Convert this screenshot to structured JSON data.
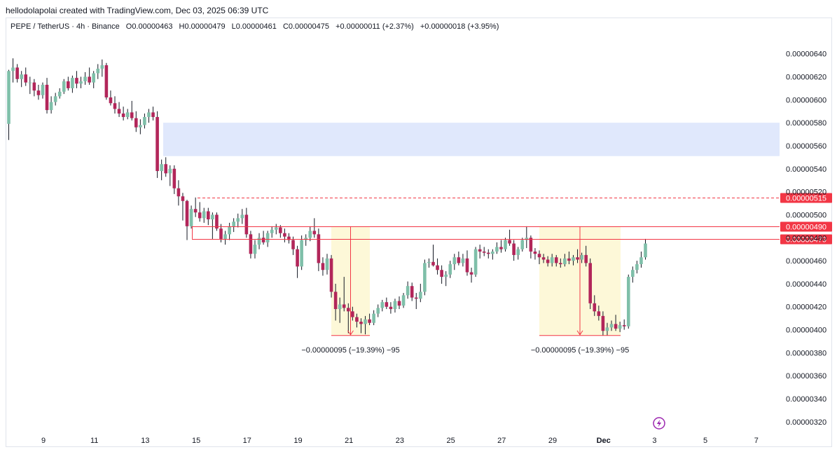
{
  "header": {
    "title": "hellodolapolai created with TradingView.com, Dec 03, 2025 06:39 UTC"
  },
  "legend": {
    "symbol": "PEPE / TetherUS · 4h · Binance",
    "open": "O0.00000463",
    "high": "H0.00000479",
    "low": "L0.00000461",
    "close": "C0.00000475",
    "change": "+0.00000011 (+2.37%)",
    "change2": "+0.00000018 (+3.95%)"
  },
  "colors": {
    "up": "#7fbfa9",
    "down": "#b2265a",
    "zone": "#e0e8fc",
    "box": "#fdf8d8",
    "level": "#f23645"
  },
  "chart_data": {
    "type": "candlestick",
    "x_tick_labels": [
      "9",
      "11",
      "13",
      "15",
      "17",
      "19",
      "21",
      "23",
      "25",
      "27",
      "29",
      "Dec",
      "3",
      "5",
      "7"
    ],
    "y_tick_labels": [
      "0.00000640",
      "0.00000620",
      "0.00000600",
      "0.00000580",
      "0.00000560",
      "0.00000540",
      "0.00000520",
      "0.00000500",
      "0.00000480",
      "0.00000460",
      "0.00000440",
      "0.00000420",
      "0.00000400",
      "0.00000380",
      "0.00000360",
      "0.00000340",
      "0.00000320"
    ],
    "ylim": [
      3.12e-06,
      6.66e-06
    ],
    "price_levels": [
      {
        "label": "0.00000515",
        "value": 5.15e-06,
        "style": "dashed"
      },
      {
        "label": "0.00000490",
        "value": 4.9e-06,
        "style": "solid"
      },
      {
        "label": "0.00000479",
        "value": 4.79e-06,
        "style": "solid"
      }
    ],
    "zone": {
      "from": 5.51e-06,
      "to": 5.8e-06,
      "x_start": "Nov 13",
      "x_end": "Dec 7"
    },
    "measurements": [
      {
        "label": "−0.00000095 (−19.39%) −95",
        "x_start": "Nov 20",
        "x_end": "Nov 22",
        "from": 4.9e-06,
        "to": 3.95e-06
      },
      {
        "label": "−0.00000095 (−19.39%) −95",
        "x_start": "Nov 28",
        "x_end": "Dec 2",
        "from": 4.9e-06,
        "to": 3.95e-06
      }
    ],
    "candles": [
      [
        5.79e-06,
        6.26e-06,
        5.65e-06,
        6.25e-06
      ],
      [
        6.25e-06,
        6.36e-06,
        6.15e-06,
        6.28e-06
      ],
      [
        6.28e-06,
        6.31e-06,
        6.15e-06,
        6.18e-06
      ],
      [
        6.18e-06,
        6.25e-06,
        6.11e-06,
        6.22e-06
      ],
      [
        6.22e-06,
        6.28e-06,
        6.12e-06,
        6.15e-06
      ],
      [
        6.15e-06,
        6.2e-06,
        6.05e-06,
        6.15e-06
      ],
      [
        6.15e-06,
        6.18e-06,
        6.03e-06,
        6.08e-06
      ],
      [
        6.08e-06,
        6.13e-06,
        6e-06,
        6.04e-06
      ],
      [
        6.04e-06,
        6.15e-06,
        6.01e-06,
        6.13e-06
      ],
      [
        6.13e-06,
        6.19e-06,
        5.88e-06,
        5.91e-06
      ],
      [
        5.91e-06,
        6.03e-06,
        5.88e-06,
        5.98e-06
      ],
      [
        5.98e-06,
        6.06e-06,
        5.95e-06,
        6.03e-06
      ],
      [
        6.03e-06,
        6.1e-06,
        6.01e-06,
        6.07e-06
      ],
      [
        6.07e-06,
        6.18e-06,
        6.05e-06,
        6.16e-06
      ],
      [
        6.16e-06,
        6.2e-06,
        6.08e-06,
        6.1e-06
      ],
      [
        6.1e-06,
        6.21e-06,
        6.06e-06,
        6.19e-06
      ],
      [
        6.19e-06,
        6.25e-06,
        6.1e-06,
        6.14e-06
      ],
      [
        6.14e-06,
        6.2e-06,
        6.1e-06,
        6.16e-06
      ],
      [
        6.16e-06,
        6.24e-06,
        6.13e-06,
        6.2e-06
      ],
      [
        6.2e-06,
        6.28e-06,
        6.13e-06,
        6.15e-06
      ],
      [
        6.15e-06,
        6.25e-06,
        6.1e-06,
        6.23e-06
      ],
      [
        6.23e-06,
        6.31e-06,
        6.18e-06,
        6.27e-06
      ],
      [
        6.27e-06,
        6.35e-06,
        6.2e-06,
        6.3e-06
      ],
      [
        6.3e-06,
        6.32e-06,
        6e-06,
        6.02e-06
      ],
      [
        6.02e-06,
        6.08e-06,
        5.95e-06,
        5.97e-06
      ],
      [
        5.97e-06,
        6.03e-06,
        5.88e-06,
        5.92e-06
      ],
      [
        5.92e-06,
        5.98e-06,
        5.85e-06,
        5.88e-06
      ],
      [
        5.88e-06,
        5.94e-06,
        5.82e-06,
        5.85e-06
      ],
      [
        5.85e-06,
        5.92e-06,
        5.83e-06,
        5.89e-06
      ],
      [
        5.89e-06,
        5.99e-06,
        5.82e-06,
        5.84e-06
      ],
      [
        5.84e-06,
        5.9e-06,
        5.72e-06,
        5.76e-06
      ],
      [
        5.76e-06,
        5.83e-06,
        5.7e-06,
        5.78e-06
      ],
      [
        5.78e-06,
        5.88e-06,
        5.75e-06,
        5.85e-06
      ],
      [
        5.85e-06,
        5.92e-06,
        5.8e-06,
        5.89e-06
      ],
      [
        5.89e-06,
        5.94e-06,
        5.82e-06,
        5.85e-06
      ],
      [
        5.85e-06,
        5.9e-06,
        5.32e-06,
        5.38e-06
      ],
      [
        5.38e-06,
        5.48e-06,
        5.3e-06,
        5.44e-06
      ],
      [
        5.44e-06,
        5.5e-06,
        5.33e-06,
        5.36e-06
      ],
      [
        5.36e-06,
        5.43e-06,
        5.25e-06,
        5.4e-06
      ],
      [
        5.4e-06,
        5.43e-06,
        5.18e-06,
        5.23e-06
      ],
      [
        5.23e-06,
        5.3e-06,
        5.08e-06,
        5.16e-06
      ],
      [
        5.16e-06,
        5.19e-06,
        4.95e-06,
        5.12e-06
      ],
      [
        5.12e-06,
        5.13e-06,
        4.78e-06,
        4.9e-06
      ],
      [
        4.9e-06,
        5.08e-06,
        4.88e-06,
        5.05e-06
      ],
      [
        5.05e-06,
        5.15e-06,
        4.98e-06,
        5.02e-06
      ],
      [
        5.02e-06,
        5.11e-06,
        4.94e-06,
        4.97e-06
      ],
      [
        4.97e-06,
        5.06e-06,
        4.93e-06,
        5.03e-06
      ],
      [
        5.03e-06,
        5.06e-06,
        4.91e-06,
        4.96e-06
      ],
      [
        4.96e-06,
        5.02e-06,
        4.79e-06,
        5e-06
      ],
      [
        5e-06,
        5.02e-06,
        4.86e-06,
        4.88e-06
      ],
      [
        4.88e-06,
        4.92e-06,
        4.76e-06,
        4.79e-06
      ],
      [
        4.79e-06,
        4.86e-06,
        4.74e-06,
        4.83e-06
      ],
      [
        4.83e-06,
        4.93e-06,
        4.78e-06,
        4.9e-06
      ],
      [
        4.9e-06,
        4.97e-06,
        4.85e-06,
        4.94e-06
      ],
      [
        4.94e-06,
        5.01e-06,
        4.89e-06,
        4.97e-06
      ],
      [
        4.97e-06,
        5.05e-06,
        4.92e-06,
        5e-06
      ],
      [
        5e-06,
        5.06e-06,
        4.8e-06,
        4.83e-06
      ],
      [
        4.83e-06,
        4.86e-06,
        4.62e-06,
        4.66e-06
      ],
      [
        4.66e-06,
        4.78e-06,
        4.62e-06,
        4.74e-06
      ],
      [
        4.74e-06,
        4.84e-06,
        4.7e-06,
        4.8e-06
      ],
      [
        4.8e-06,
        4.86e-06,
        4.74e-06,
        4.76e-06
      ],
      [
        4.76e-06,
        4.86e-06,
        4.72e-06,
        4.84e-06
      ],
      [
        4.84e-06,
        4.9e-06,
        4.8e-06,
        4.87e-06
      ],
      [
        4.87e-06,
        4.92e-06,
        4.83e-06,
        4.89e-06
      ],
      [
        4.89e-06,
        4.91e-06,
        4.8e-06,
        4.84e-06
      ],
      [
        4.84e-06,
        4.88e-06,
        4.76e-06,
        4.81e-06
      ],
      [
        4.81e-06,
        4.84e-06,
        4.75e-06,
        4.78e-06
      ],
      [
        4.78e-06,
        4.81e-06,
        4.65e-06,
        4.7e-06
      ],
      [
        4.7e-06,
        4.73e-06,
        4.45e-06,
        4.55e-06
      ],
      [
        4.55e-06,
        4.82e-06,
        4.52e-06,
        4.78e-06
      ],
      [
        4.78e-06,
        4.83e-06,
        4.73e-06,
        4.8e-06
      ],
      [
        4.8e-06,
        4.9e-06,
        4.77e-06,
        4.86e-06
      ],
      [
        4.86e-06,
        4.97e-06,
        4.8e-06,
        4.83e-06
      ],
      [
        4.83e-06,
        4.88e-06,
        4.51e-06,
        4.58e-06
      ],
      [
        4.58e-06,
        4.63e-06,
        4.47e-06,
        4.52e-06
      ],
      [
        4.52e-06,
        4.66e-06,
        4.48e-06,
        4.62e-06
      ],
      [
        4.62e-06,
        4.65e-06,
        4.28e-06,
        4.33e-06
      ],
      [
        4.33e-06,
        4.4e-06,
        4.08e-06,
        4.18e-06
      ],
      [
        4.18e-06,
        4.28e-06,
        4.06e-06,
        4.22e-06
      ],
      [
        4.22e-06,
        4.46e-06,
        4.16e-06,
        4.19e-06
      ],
      [
        4.19e-06,
        4.23e-06,
        3.97e-06,
        4.16e-06
      ],
      [
        4.16e-06,
        4.2e-06,
        4.08e-06,
        4.11e-06
      ],
      [
        4.11e-06,
        4.14e-06,
        4.02e-06,
        4.07e-06
      ],
      [
        4.07e-06,
        4.1e-06,
        3.97e-06,
        4.05e-06
      ],
      [
        4.05e-06,
        4.12e-06,
        3.96e-06,
        4.09e-06
      ],
      [
        4.09e-06,
        4.14e-06,
        4.04e-06,
        4.06e-06
      ],
      [
        4.06e-06,
        4.17e-06,
        4.04e-06,
        4.14e-06
      ],
      [
        4.14e-06,
        4.22e-06,
        4.11e-06,
        4.19e-06
      ],
      [
        4.19e-06,
        4.26e-06,
        4.16e-06,
        4.24e-06
      ],
      [
        4.24e-06,
        4.28e-06,
        4.18e-06,
        4.2e-06
      ],
      [
        4.2e-06,
        4.24e-06,
        4.14e-06,
        4.18e-06
      ],
      [
        4.18e-06,
        4.27e-06,
        4.15e-06,
        4.25e-06
      ],
      [
        4.25e-06,
        4.29e-06,
        4.18e-06,
        4.21e-06
      ],
      [
        4.21e-06,
        4.32e-06,
        4.19e-06,
        4.3e-06
      ],
      [
        4.3e-06,
        4.42e-06,
        4.27e-06,
        4.38e-06
      ],
      [
        4.38e-06,
        4.41e-06,
        4.25e-06,
        4.28e-06
      ],
      [
        4.28e-06,
        4.32e-06,
        4.18e-06,
        4.27e-06
      ],
      [
        4.27e-06,
        4.4e-06,
        4.24e-06,
        4.33e-06
      ],
      [
        4.33e-06,
        4.61e-06,
        4.3e-06,
        4.58e-06
      ],
      [
        4.58e-06,
        4.62e-06,
        4.54e-06,
        4.59e-06
      ],
      [
        4.59e-06,
        4.74e-06,
        4.55e-06,
        4.56e-06
      ],
      [
        4.56e-06,
        4.62e-06,
        4.48e-06,
        4.52e-06
      ],
      [
        4.52e-06,
        4.56e-06,
        4.4e-06,
        4.46e-06
      ],
      [
        4.46e-06,
        4.51e-06,
        4.38e-06,
        4.48e-06
      ],
      [
        4.48e-06,
        4.6e-06,
        4.45e-06,
        4.57e-06
      ],
      [
        4.57e-06,
        4.66e-06,
        4.52e-06,
        4.63e-06
      ],
      [
        4.63e-06,
        4.68e-06,
        4.56e-06,
        4.58e-06
      ],
      [
        4.58e-06,
        4.66e-06,
        4.55e-06,
        4.62e-06
      ],
      [
        4.62e-06,
        4.69e-06,
        4.47e-06,
        4.5e-06
      ],
      [
        4.5e-06,
        4.54e-06,
        4.41e-06,
        4.48e-06
      ],
      [
        4.48e-06,
        4.72e-06,
        4.46e-06,
        4.7e-06
      ],
      [
        4.7e-06,
        4.74e-06,
        4.62e-06,
        4.68e-06
      ],
      [
        4.68e-06,
        4.72e-06,
        4.64e-06,
        4.67e-06
      ],
      [
        4.67e-06,
        4.7e-06,
        4.62e-06,
        4.66e-06
      ],
      [
        4.66e-06,
        4.7e-06,
        4.61e-06,
        4.68e-06
      ],
      [
        4.68e-06,
        4.76e-06,
        4.66e-06,
        4.72e-06
      ],
      [
        4.72e-06,
        4.78e-06,
        4.67e-06,
        4.7e-06
      ],
      [
        4.7e-06,
        4.8e-06,
        4.68e-06,
        4.78e-06
      ],
      [
        4.78e-06,
        4.87e-06,
        4.73e-06,
        4.75e-06
      ],
      [
        4.75e-06,
        4.78e-06,
        4.6e-06,
        4.65e-06
      ],
      [
        4.65e-06,
        4.72e-06,
        4.61e-06,
        4.7e-06
      ],
      [
        4.7e-06,
        4.8e-06,
        4.68e-06,
        4.78e-06
      ],
      [
        4.78e-06,
        4.9e-06,
        4.71e-06,
        4.8e-06
      ],
      [
        4.8e-06,
        4.82e-06,
        4.62e-06,
        4.68e-06
      ],
      [
        4.68e-06,
        4.71e-06,
        4.61e-06,
        4.66e-06
      ],
      [
        4.66e-06,
        4.69e-06,
        4.57e-06,
        4.63e-06
      ],
      [
        4.63e-06,
        4.66e-06,
        4.58e-06,
        4.61e-06
      ],
      [
        4.61e-06,
        4.64e-06,
        4.55e-06,
        4.58e-06
      ],
      [
        4.58e-06,
        4.66e-06,
        4.55e-06,
        4.63e-06
      ],
      [
        4.63e-06,
        4.65e-06,
        4.55e-06,
        4.58e-06
      ],
      [
        4.58e-06,
        4.62e-06,
        4.54e-06,
        4.57e-06
      ],
      [
        4.57e-06,
        4.66e-06,
        4.55e-06,
        4.62e-06
      ],
      [
        4.62e-06,
        4.68e-06,
        4.57e-06,
        4.6e-06
      ],
      [
        4.6e-06,
        4.65e-06,
        4.56e-06,
        4.63e-06
      ],
      [
        4.63e-06,
        4.7e-06,
        4.58e-06,
        4.61e-06
      ],
      [
        4.61e-06,
        4.67e-06,
        4.58e-06,
        4.65e-06
      ],
      [
        4.65e-06,
        4.73e-06,
        4.55e-06,
        4.58e-06
      ],
      [
        4.58e-06,
        4.62e-06,
        4.18e-06,
        4.23e-06
      ],
      [
        4.23e-06,
        4.3e-06,
        4.12e-06,
        4.16e-06
      ],
      [
        4.16e-06,
        4.21e-06,
        4.08e-06,
        4.12e-06
      ],
      [
        4.12e-06,
        4.16e-06,
        3.95e-06,
        3.99e-06
      ],
      [
        3.99e-06,
        4.06e-06,
        3.95e-06,
        4.02e-06
      ],
      [
        4.02e-06,
        4.08e-06,
        3.99e-06,
        4.05e-06
      ],
      [
        4.05e-06,
        4.13e-06,
        3.99e-06,
        4.01e-06
      ],
      [
        4.01e-06,
        4.07e-06,
        3.98e-06,
        4.04e-06
      ],
      [
        4.04e-06,
        4.09e-06,
        4e-06,
        4.03e-06
      ],
      [
        4.03e-06,
        4.48e-06,
        4.01e-06,
        4.46e-06
      ],
      [
        4.46e-06,
        4.55e-06,
        4.41e-06,
        4.52e-06
      ],
      [
        4.52e-06,
        4.6e-06,
        4.49e-06,
        4.57e-06
      ],
      [
        4.57e-06,
        4.68e-06,
        4.54e-06,
        4.63e-06
      ],
      [
        4.63e-06,
        4.79e-06,
        4.61e-06,
        4.75e-06
      ]
    ]
  }
}
